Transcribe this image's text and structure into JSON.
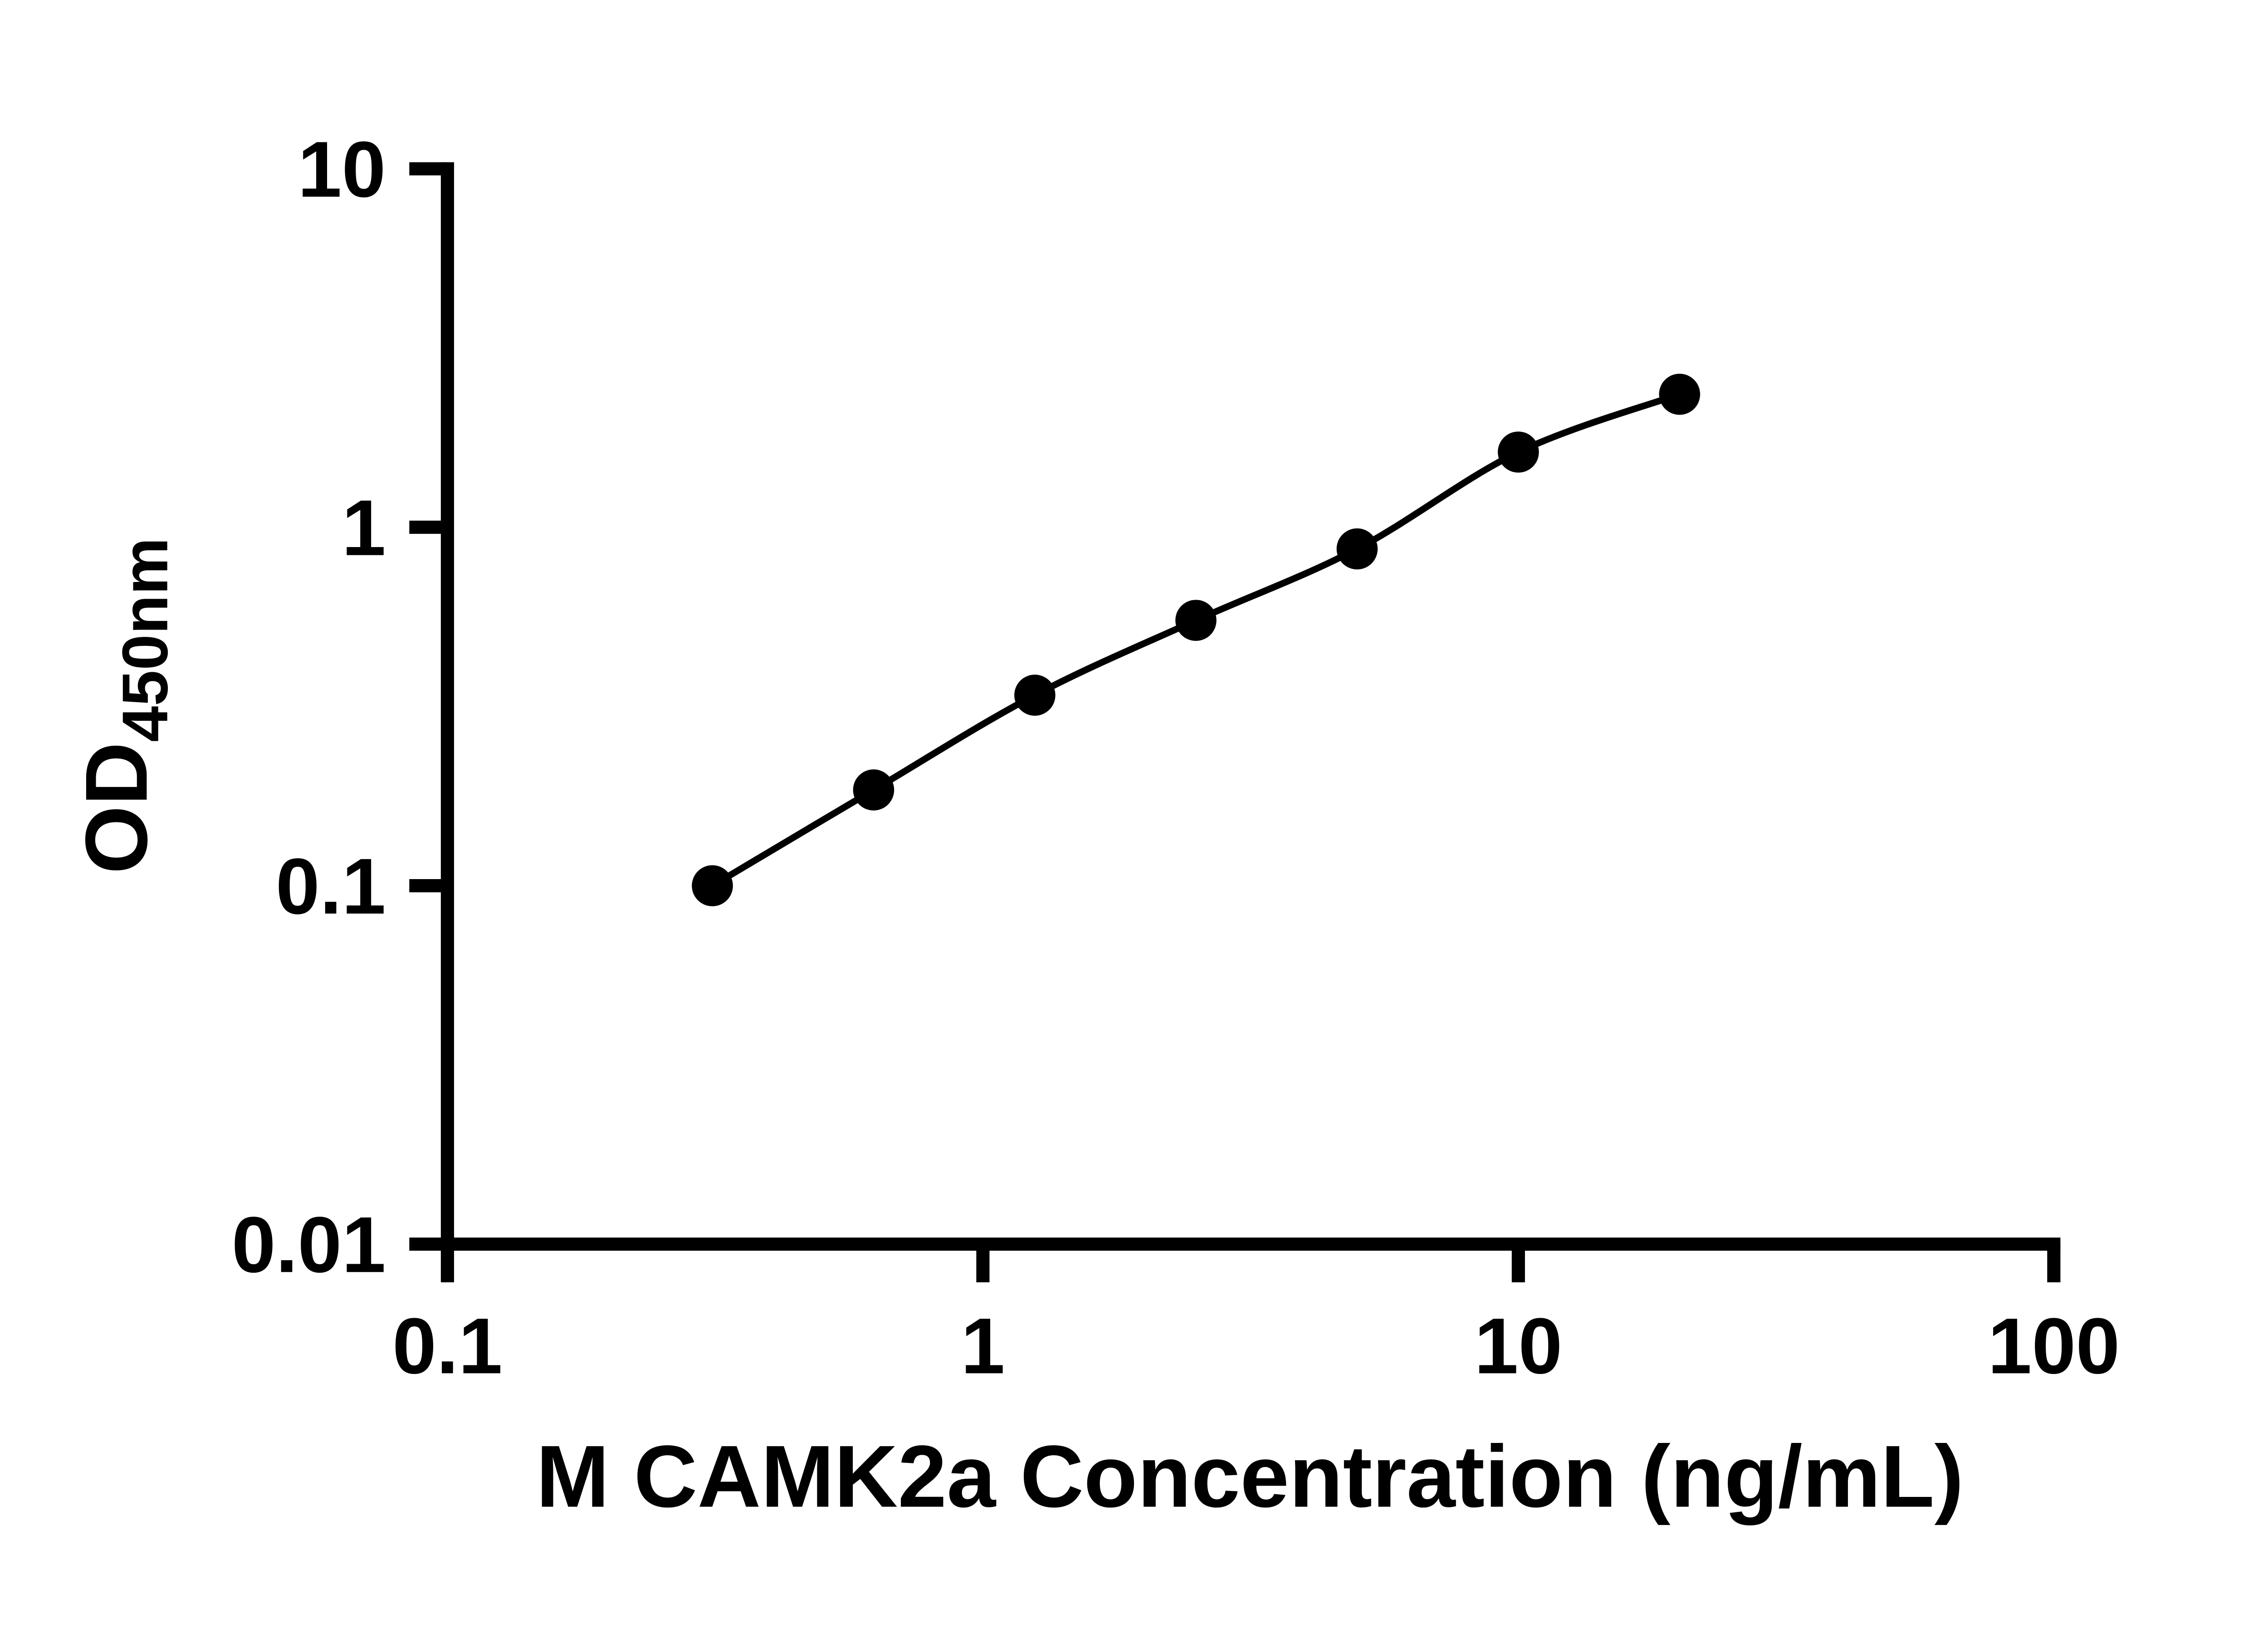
{
  "chart_data": {
    "type": "scatter",
    "title": "",
    "xlabel": "M CAMK2a Concentration (ng/mL)",
    "ylabel_main": "OD",
    "ylabel_sub": "450nm",
    "x_scale": "log",
    "y_scale": "log",
    "xlim": [
      0.1,
      100
    ],
    "ylim": [
      0.01,
      10
    ],
    "grid": false,
    "legend": "none",
    "x_ticks": [
      {
        "value": 0.1,
        "label": "0.1"
      },
      {
        "value": 1,
        "label": "1"
      },
      {
        "value": 10,
        "label": "10"
      },
      {
        "value": 100,
        "label": "100"
      }
    ],
    "y_ticks": [
      {
        "value": 0.01,
        "label": "0.01"
      },
      {
        "value": 0.1,
        "label": "0.1"
      },
      {
        "value": 1,
        "label": "1"
      },
      {
        "value": 10,
        "label": "10"
      }
    ],
    "series": [
      {
        "marker": "circle",
        "line": "smooth",
        "color": "#000000",
        "x": [
          0.3125,
          0.625,
          1.25,
          2.5,
          5,
          10,
          20
        ],
        "y": [
          0.1,
          0.185,
          0.34,
          0.55,
          0.87,
          1.62,
          2.35
        ]
      }
    ]
  },
  "style": {
    "axis_color": "#000000",
    "marker_color": "#000000",
    "line_color": "#000000",
    "background": "#ffffff"
  }
}
